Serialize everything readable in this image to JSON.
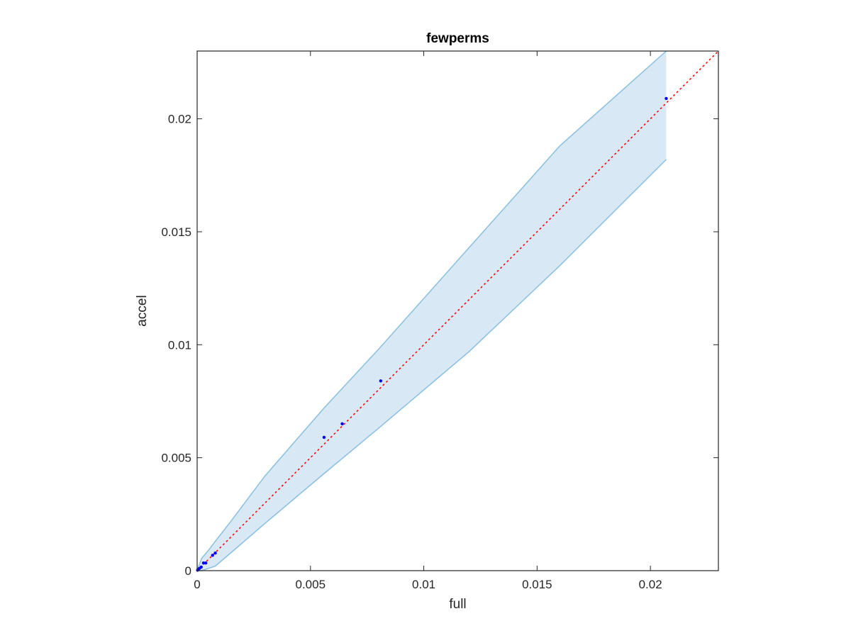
{
  "chart_data": {
    "type": "scatter",
    "title": "fewperms",
    "xlabel": "full",
    "ylabel": "accel",
    "xlim": [
      0,
      0.023
    ],
    "ylim": [
      0,
      0.023
    ],
    "xticks": [
      0,
      0.005,
      0.01,
      0.015,
      0.02
    ],
    "yticks": [
      0,
      0.005,
      0.01,
      0.015,
      0.02
    ],
    "xtick_labels": [
      "0",
      "0.005",
      "0.01",
      "0.015",
      "0.02"
    ],
    "ytick_labels": [
      "0",
      "0.005",
      "0.01",
      "0.015",
      "0.02"
    ],
    "grid": false,
    "box": true,
    "points": {
      "color": "#0000ff",
      "x": [
        2e-05,
        6e-05,
        0.0001,
        0.00018,
        0.00028,
        0.00038,
        0.00068,
        0.0008,
        0.0056,
        0.0064,
        0.0081,
        0.0207
      ],
      "y": [
        2e-05,
        6e-05,
        0.0001,
        0.00016,
        0.00034,
        0.00034,
        0.00068,
        0.00078,
        0.0059,
        0.0065,
        0.0084,
        0.0209
      ]
    },
    "reference_line": {
      "style": "dotted",
      "color": "#ff0000",
      "x": [
        0,
        0.023
      ],
      "y": [
        0,
        0.023
      ]
    },
    "band": {
      "fill": "#d9e8f5",
      "edge": "#89bfe0",
      "x": [
        0,
        0.0002,
        0.0005,
        0.0008,
        0.0015,
        0.003,
        0.0056,
        0.008,
        0.012,
        0.016,
        0.0207
      ],
      "upper": [
        0,
        0.00055,
        0.0009,
        0.0013,
        0.0022,
        0.0042,
        0.0072,
        0.0098,
        0.0143,
        0.0188,
        0.023
      ],
      "lower": [
        0,
        0.0,
        0.0001,
        0.0002,
        0.0008,
        0.0021,
        0.0043,
        0.0063,
        0.0097,
        0.0135,
        0.0182
      ]
    }
  }
}
